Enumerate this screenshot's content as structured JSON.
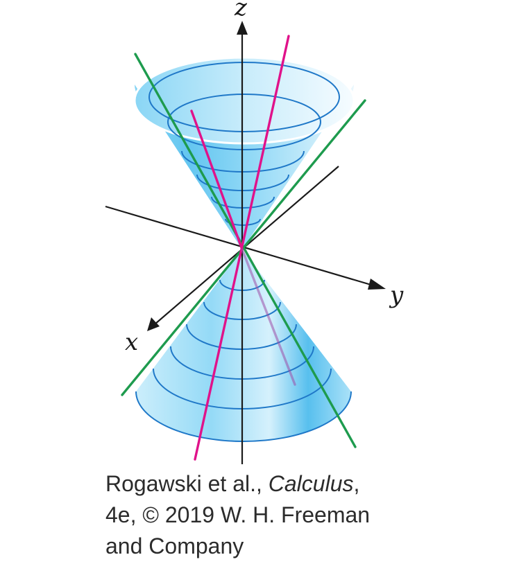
{
  "axes": {
    "z_label": "z",
    "y_label": "y",
    "x_label": "x"
  },
  "caption": {
    "authors": "Rogawski et al., ",
    "book_title": "Calculus",
    "after_title": ",",
    "line2": "4e, © 2019 W. H. Freeman",
    "line3": "and Company"
  },
  "colors": {
    "cone_fill": "#5fc6f0",
    "cone_light": "#e6f6fd",
    "contour": "#1f78c8",
    "generator_green": "#1e9b4e",
    "generator_magenta": "#e0128a",
    "axis": "#1a1a1a"
  }
}
